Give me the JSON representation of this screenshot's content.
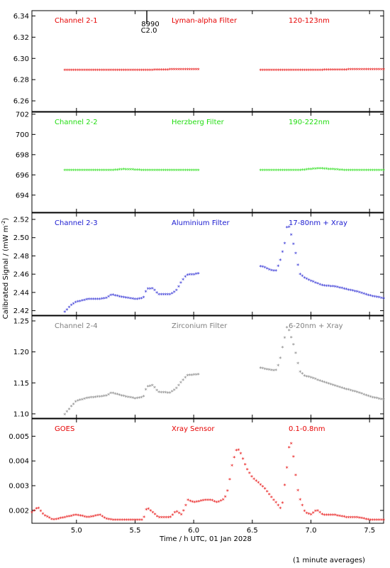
{
  "colors": {
    "red": "#e60000",
    "green": "#22dd11",
    "blue": "#1a1ad0",
    "gray": "#808080",
    "black": "#000000"
  },
  "chart_data": {
    "type": "scatter",
    "x_label": "Time / h UTC, 01 Jan 2028",
    "y_label": "Calibrated Signal / (mW m",
    "y_label_superscript": "-2",
    "y_label_suffix": ")",
    "footnote": "(1 minute averages)",
    "xlim": [
      4.62,
      7.62
    ],
    "x_ticks": [
      5.0,
      5.5,
      6.0,
      6.5,
      7.0,
      7.5
    ],
    "x_tick_labels": [
      "5.0",
      "5.5",
      "6.0",
      "6.5",
      "7.0",
      "7.5"
    ],
    "marker": {
      "x": 5.6,
      "labels": [
        "8990",
        "C2.0"
      ]
    },
    "panels": [
      {
        "name": "Channel 2-1",
        "filter": "Lyman-alpha Filter",
        "band": "120-123nm",
        "color": "red",
        "ylim": [
          6.25,
          6.345
        ],
        "y_ticks": [
          6.26,
          6.28,
          6.3,
          6.32,
          6.34
        ],
        "y_tick_labels": [
          "6.26",
          "6.28",
          "6.30",
          "6.32",
          "6.34"
        ],
        "series": [
          {
            "x": [
              4.9,
              5.3,
              5.6,
              5.8,
              6.04
            ],
            "y": [
              6.2885,
              6.2885,
              6.2885,
              6.289,
              6.2893
            ]
          },
          {
            "x": [
              6.57,
              6.9,
              7.2,
              7.4,
              7.62
            ],
            "y": [
              6.2885,
              6.2885,
              6.2887,
              6.2892,
              6.2893
            ]
          }
        ]
      },
      {
        "name": "Channel 2-2",
        "filter": "Herzberg Filter",
        "band": "190-222nm",
        "color": "green",
        "ylim": [
          692.3,
          702.2
        ],
        "y_ticks": [
          694,
          696,
          698,
          700,
          702
        ],
        "y_tick_labels": [
          "694",
          "696",
          "698",
          "700",
          "702"
        ],
        "series": [
          {
            "x": [
              4.9,
              5.3,
              5.4,
              5.6,
              6.04
            ],
            "y": [
              696.4,
              696.4,
              696.5,
              696.4,
              696.4
            ]
          },
          {
            "x": [
              6.57,
              6.9,
              7.07,
              7.3,
              7.62
            ],
            "y": [
              696.4,
              696.4,
              696.6,
              696.4,
              696.4
            ]
          }
        ]
      },
      {
        "name": "Channel 2-3",
        "filter": "Aluminium Filter",
        "band": "17-80nm + Xray",
        "color": "blue",
        "ylim": [
          2.415,
          2.527
        ],
        "y_ticks": [
          2.42,
          2.44,
          2.46,
          2.48,
          2.5,
          2.52
        ],
        "y_tick_labels": [
          "2.42",
          "2.44",
          "2.46",
          "2.48",
          "2.50",
          "2.52"
        ],
        "series": [
          {
            "x": [
              4.9,
              4.95,
              5.0,
              5.1,
              5.2,
              5.25,
              5.3,
              5.4,
              5.5,
              5.57,
              5.6,
              5.65,
              5.7,
              5.8,
              5.85,
              5.9,
              5.93,
              5.95,
              6.0,
              6.04
            ],
            "y": [
              2.418,
              2.425,
              2.429,
              2.432,
              2.432,
              2.433,
              2.437,
              2.434,
              2.432,
              2.433,
              2.443,
              2.444,
              2.437,
              2.437,
              2.441,
              2.452,
              2.457,
              2.459,
              2.459,
              2.46
            ]
          },
          {
            "x": [
              6.57,
              6.6,
              6.65,
              6.7,
              6.73,
              6.75,
              6.78,
              6.8,
              6.82,
              6.85,
              6.88,
              6.9,
              6.95,
              7.0,
              7.1,
              7.2,
              7.3,
              7.4,
              7.5,
              7.62
            ],
            "y": [
              2.468,
              2.467,
              2.464,
              2.463,
              2.471,
              2.48,
              2.495,
              2.516,
              2.509,
              2.493,
              2.477,
              2.46,
              2.455,
              2.452,
              2.447,
              2.446,
              2.443,
              2.44,
              2.436,
              2.433
            ]
          }
        ]
      },
      {
        "name": "Channel 2-4",
        "filter": "Zirconium Filter",
        "band": "6-20nm + Xray",
        "color": "gray",
        "ylim": [
          1.093,
          1.258
        ],
        "y_ticks": [
          1.1,
          1.15,
          1.2,
          1.25
        ],
        "y_tick_labels": [
          "1.10",
          "1.15",
          "1.20",
          "1.25"
        ],
        "series": [
          {
            "x": [
              4.9,
              4.95,
              5.0,
              5.1,
              5.2,
              5.25,
              5.3,
              5.4,
              5.5,
              5.57,
              5.6,
              5.65,
              5.7,
              5.8,
              5.85,
              5.9,
              5.93,
              5.95,
              6.0,
              6.04
            ],
            "y": [
              1.098,
              1.11,
              1.12,
              1.125,
              1.127,
              1.128,
              1.133,
              1.128,
              1.124,
              1.126,
              1.143,
              1.145,
              1.134,
              1.133,
              1.14,
              1.152,
              1.158,
              1.162,
              1.162,
              1.163
            ]
          },
          {
            "x": [
              6.57,
              6.6,
              6.65,
              6.7,
              6.73,
              6.75,
              6.78,
              6.8,
              6.82,
              6.85,
              6.88,
              6.9,
              6.95,
              7.0,
              7.1,
              7.2,
              7.3,
              7.4,
              7.5,
              7.62
            ],
            "y": [
              1.173,
              1.172,
              1.17,
              1.169,
              1.181,
              1.2,
              1.225,
              1.243,
              1.23,
              1.212,
              1.19,
              1.168,
              1.16,
              1.158,
              1.151,
              1.145,
              1.139,
              1.134,
              1.127,
              1.122
            ]
          }
        ]
      },
      {
        "name": "GOES",
        "filter": "Xray Sensor",
        "band": "0.1-0.8nm",
        "color": "red",
        "ylim": [
          0.00148,
          0.0057
        ],
        "y_ticks": [
          0.002,
          0.003,
          0.004,
          0.005
        ],
        "y_tick_labels": [
          "0.002",
          "0.003",
          "0.004",
          "0.005"
        ],
        "series": [
          {
            "x": [
              4.62,
              4.67,
              4.72,
              4.8,
              4.9,
              5.0,
              5.1,
              5.2,
              5.25,
              5.3,
              5.4,
              5.5,
              5.57,
              5.6,
              5.65,
              5.7,
              5.8,
              5.85,
              5.9,
              5.95,
              6.0,
              6.1,
              6.15,
              6.2,
              6.25,
              6.28,
              6.3,
              6.33,
              6.37,
              6.4,
              6.45,
              6.5,
              6.6,
              6.7,
              6.75,
              6.8,
              6.82,
              6.84,
              6.86,
              6.88,
              6.9,
              6.95,
              7.0,
              7.05,
              7.1,
              7.2,
              7.3,
              7.4,
              7.5,
              7.62
            ],
            "y": [
              0.0019,
              0.0021,
              0.0018,
              0.0016,
              0.0017,
              0.0018,
              0.0017,
              0.0018,
              0.00165,
              0.0016,
              0.0016,
              0.0016,
              0.0016,
              0.0021,
              0.0019,
              0.0017,
              0.0017,
              0.00195,
              0.0018,
              0.0024,
              0.0023,
              0.0024,
              0.0024,
              0.0023,
              0.0024,
              0.0026,
              0.003,
              0.0039,
              0.0045,
              0.0043,
              0.0037,
              0.0033,
              0.0029,
              0.0023,
              0.002,
              0.0039,
              0.0048,
              0.0046,
              0.0038,
              0.003,
              0.0025,
              0.0019,
              0.0018,
              0.002,
              0.0018,
              0.0018,
              0.0017,
              0.0017,
              0.0016,
              0.0016
            ]
          }
        ]
      }
    ]
  }
}
